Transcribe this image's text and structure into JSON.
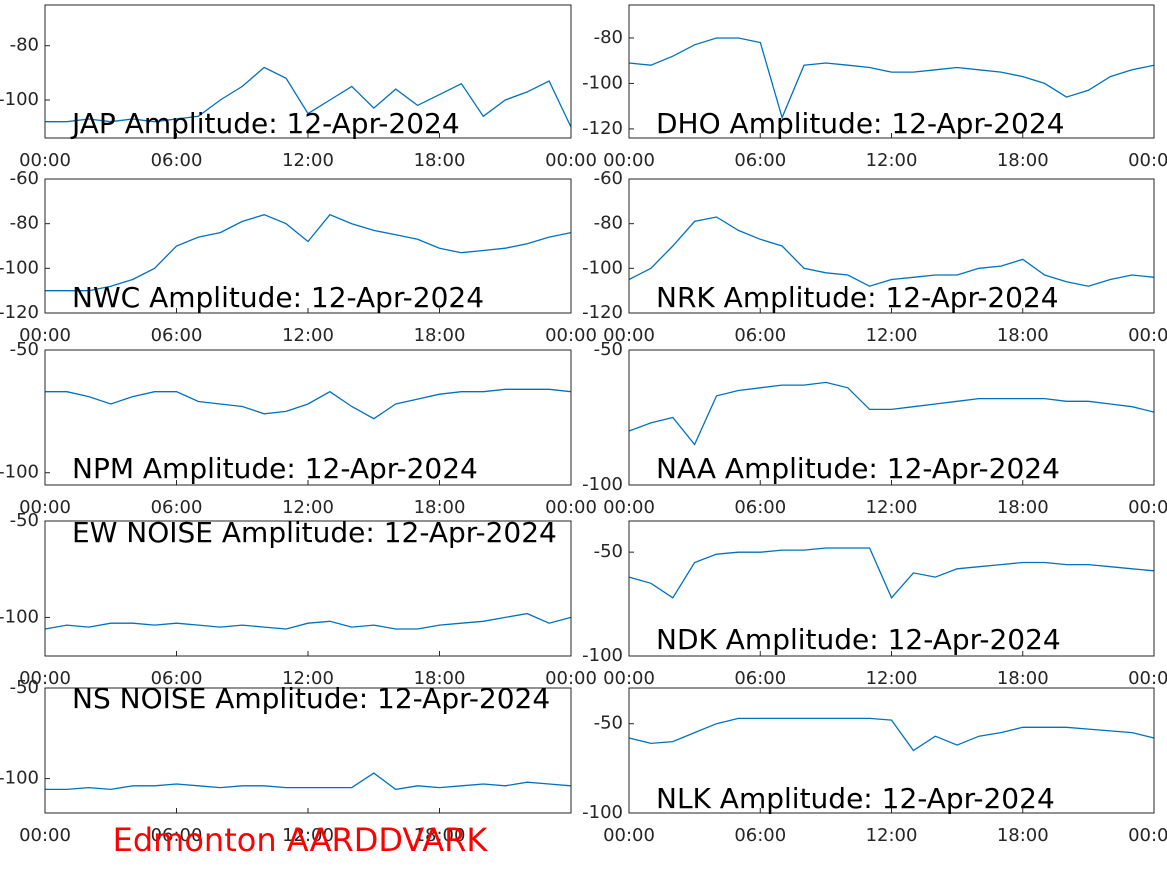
{
  "chart_data": [
    {
      "type": "line",
      "title": "JAP Amplitude: 12-Apr-2024",
      "color": "#0072bd",
      "xlim": [
        0,
        24
      ],
      "ylim": [
        -114,
        -65
      ],
      "xticks": [
        {
          "value": 0,
          "label": "00:00"
        },
        {
          "value": 6,
          "label": "06:00"
        },
        {
          "value": 12,
          "label": "12:00"
        },
        {
          "value": 18,
          "label": "18:00"
        },
        {
          "value": 24,
          "label": "00:00"
        }
      ],
      "yticks": [
        -80,
        -100
      ],
      "x": [
        0,
        1,
        2,
        3,
        4,
        5,
        6,
        7,
        8,
        9,
        10,
        11,
        12,
        13,
        14,
        15,
        16,
        17,
        18,
        19,
        20,
        21,
        22,
        23,
        24
      ],
      "values": [
        -108,
        -108,
        -107,
        -108,
        -107,
        -108,
        -107,
        -106,
        -100,
        -95,
        -88,
        -92,
        -105,
        -100,
        -95,
        -103,
        -96,
        -102,
        -98,
        -94,
        -106,
        -100,
        -97,
        -93,
        -110
      ]
    },
    {
      "type": "line",
      "title": "DHO Amplitude: 12-Apr-2024",
      "color": "#0072bd",
      "xlim": [
        0,
        24
      ],
      "ylim": [
        -124,
        -65.5
      ],
      "xticks": [
        {
          "value": 0,
          "label": "00:00"
        },
        {
          "value": 6,
          "label": "06:00"
        },
        {
          "value": 12,
          "label": "12:00"
        },
        {
          "value": 18,
          "label": "18:00"
        },
        {
          "value": 24,
          "label": "00:00"
        }
      ],
      "yticks": [
        -80,
        -100,
        -120
      ],
      "x": [
        0,
        1,
        2,
        3,
        4,
        5,
        6,
        7,
        8,
        9,
        10,
        11,
        12,
        13,
        14,
        15,
        16,
        17,
        18,
        19,
        20,
        21,
        22,
        23,
        24
      ],
      "values": [
        -91,
        -92,
        -88,
        -83,
        -80,
        -80,
        -82,
        -115,
        -92,
        -91,
        -92,
        -93,
        -95,
        -95,
        -94,
        -93,
        -94,
        -95,
        -97,
        -100,
        -106,
        -103,
        -97,
        -94,
        -92
      ]
    },
    {
      "type": "line",
      "title": "NWC Amplitude: 12-Apr-2024",
      "color": "#0072bd",
      "xlim": [
        0,
        24
      ],
      "ylim": [
        -120,
        -60
      ],
      "xticks": [
        {
          "value": 0,
          "label": "00:00"
        },
        {
          "value": 6,
          "label": "06:00"
        },
        {
          "value": 12,
          "label": "12:00"
        },
        {
          "value": 18,
          "label": "18:00"
        },
        {
          "value": 24,
          "label": "00:00"
        }
      ],
      "yticks": [
        -60,
        -80,
        -100,
        -120
      ],
      "x": [
        0,
        1,
        2,
        3,
        4,
        5,
        6,
        7,
        8,
        9,
        10,
        11,
        12,
        13,
        14,
        15,
        16,
        17,
        18,
        19,
        20,
        21,
        22,
        23,
        24
      ],
      "values": [
        -110,
        -110,
        -110,
        -108,
        -105,
        -100,
        -90,
        -86,
        -84,
        -79,
        -76,
        -80,
        -88,
        -76,
        -80,
        -83,
        -85,
        -87,
        -91,
        -93,
        -92,
        -91,
        -89,
        -86,
        -84
      ]
    },
    {
      "type": "line",
      "title": "NRK Amplitude: 12-Apr-2024",
      "color": "#0072bd",
      "xlim": [
        0,
        24
      ],
      "ylim": [
        -120,
        -60
      ],
      "xticks": [
        {
          "value": 0,
          "label": "00:00"
        },
        {
          "value": 6,
          "label": "06:00"
        },
        {
          "value": 12,
          "label": "12:00"
        },
        {
          "value": 18,
          "label": "18:00"
        },
        {
          "value": 24,
          "label": "00:00"
        }
      ],
      "yticks": [
        -60,
        -80,
        -100,
        -120
      ],
      "x": [
        0,
        1,
        2,
        3,
        4,
        5,
        6,
        7,
        8,
        9,
        10,
        11,
        12,
        13,
        14,
        15,
        16,
        17,
        18,
        19,
        20,
        21,
        22,
        23,
        24
      ],
      "values": [
        -105,
        -100,
        -90,
        -79,
        -77,
        -83,
        -87,
        -90,
        -100,
        -102,
        -103,
        -108,
        -105,
        -104,
        -103,
        -103,
        -100,
        -99,
        -96,
        -103,
        -106,
        -108,
        -105,
        -103,
        -104
      ]
    },
    {
      "type": "line",
      "title": "NPM Amplitude: 12-Apr-2024",
      "color": "#0072bd",
      "xlim": [
        0,
        24
      ],
      "ylim": [
        -105,
        -50
      ],
      "xticks": [
        {
          "value": 0,
          "label": "00:00"
        },
        {
          "value": 6,
          "label": "06:00"
        },
        {
          "value": 12,
          "label": "12:00"
        },
        {
          "value": 18,
          "label": "18:00"
        },
        {
          "value": 24,
          "label": "00:00"
        }
      ],
      "yticks": [
        -50,
        -100
      ],
      "x": [
        0,
        1,
        2,
        3,
        4,
        5,
        6,
        7,
        8,
        9,
        10,
        11,
        12,
        13,
        14,
        15,
        16,
        17,
        18,
        19,
        20,
        21,
        22,
        23,
        24
      ],
      "values": [
        -67,
        -67,
        -69,
        -72,
        -69,
        -67,
        -67,
        -71,
        -72,
        -73,
        -76,
        -75,
        -72,
        -67,
        -73,
        -78,
        -72,
        -70,
        -68,
        -67,
        -67,
        -66,
        -66,
        -66,
        -67
      ]
    },
    {
      "type": "line",
      "title": "NAA Amplitude: 12-Apr-2024",
      "color": "#0072bd",
      "xlim": [
        0,
        24
      ],
      "ylim": [
        -100,
        -50
      ],
      "xticks": [
        {
          "value": 0,
          "label": "00:00"
        },
        {
          "value": 6,
          "label": "06:00"
        },
        {
          "value": 12,
          "label": "12:00"
        },
        {
          "value": 18,
          "label": "18:00"
        },
        {
          "value": 24,
          "label": "00:00"
        }
      ],
      "yticks": [
        -50,
        -100
      ],
      "x": [
        0,
        1,
        2,
        3,
        4,
        5,
        6,
        7,
        8,
        9,
        10,
        11,
        12,
        13,
        14,
        15,
        16,
        17,
        18,
        19,
        20,
        21,
        22,
        23,
        24
      ],
      "values": [
        -80,
        -77,
        -75,
        -85,
        -67,
        -65,
        -64,
        -63,
        -63,
        -62,
        -64,
        -72,
        -72,
        -71,
        -70,
        -69,
        -68,
        -68,
        -68,
        -68,
        -69,
        -69,
        -70,
        -71,
        -73
      ]
    },
    {
      "type": "line",
      "title": "EW NOISE Amplitude: 12-Apr-2024",
      "color": "#0072bd",
      "xlim": [
        0,
        24
      ],
      "ylim": [
        -120,
        -50
      ],
      "xticks": [
        {
          "value": 0,
          "label": "00:00"
        },
        {
          "value": 6,
          "label": "06:00"
        },
        {
          "value": 12,
          "label": "12:00"
        },
        {
          "value": 18,
          "label": "18:00"
        },
        {
          "value": 24,
          "label": "00:00"
        }
      ],
      "yticks": [
        -50,
        -100
      ],
      "x": [
        0,
        1,
        2,
        3,
        4,
        5,
        6,
        7,
        8,
        9,
        10,
        11,
        12,
        13,
        14,
        15,
        16,
        17,
        18,
        19,
        20,
        21,
        22,
        23,
        24
      ],
      "values": [
        -106,
        -104,
        -105,
        -103,
        -103,
        -104,
        -103,
        -104,
        -105,
        -104,
        -105,
        -106,
        -103,
        -102,
        -105,
        -104,
        -106,
        -106,
        -104,
        -103,
        -102,
        -100,
        -98,
        -103,
        -100
      ]
    },
    {
      "type": "line",
      "title": "NDK Amplitude: 12-Apr-2024",
      "color": "#0072bd",
      "xlim": [
        0,
        24
      ],
      "ylim": [
        -100,
        -35
      ],
      "xticks": [
        {
          "value": 0,
          "label": "00:00"
        },
        {
          "value": 6,
          "label": "06:00"
        },
        {
          "value": 12,
          "label": "12:00"
        },
        {
          "value": 18,
          "label": "18:00"
        },
        {
          "value": 24,
          "label": "00:00"
        }
      ],
      "yticks": [
        -50,
        -100
      ],
      "x": [
        0,
        1,
        2,
        3,
        4,
        5,
        6,
        7,
        8,
        9,
        10,
        11,
        12,
        13,
        14,
        15,
        16,
        17,
        18,
        19,
        20,
        21,
        22,
        23,
        24
      ],
      "values": [
        -62,
        -65,
        -72,
        -55,
        -51,
        -50,
        -50,
        -49,
        -49,
        -48,
        -48,
        -48,
        -72,
        -60,
        -62,
        -58,
        -57,
        -56,
        -55,
        -55,
        -56,
        -56,
        -57,
        -58,
        -59
      ]
    },
    {
      "type": "line",
      "title": "NS NOISE Amplitude: 12-Apr-2024",
      "color": "#0072bd",
      "xlim": [
        0,
        24
      ],
      "ylim": [
        -119,
        -50
      ],
      "xticks": [
        {
          "value": 0,
          "label": "00:00"
        },
        {
          "value": 6,
          "label": "06:00"
        },
        {
          "value": 12,
          "label": "12:00"
        },
        {
          "value": 18,
          "label": "18:00"
        }
      ],
      "yticks": [
        -50,
        -100
      ],
      "x": [
        0,
        1,
        2,
        3,
        4,
        5,
        6,
        7,
        8,
        9,
        10,
        11,
        12,
        13,
        14,
        15,
        16,
        17,
        18,
        19,
        20,
        21,
        22,
        23,
        24
      ],
      "values": [
        -106,
        -106,
        -105,
        -106,
        -104,
        -104,
        -103,
        -104,
        -105,
        -104,
        -104,
        -105,
        -105,
        -105,
        -105,
        -97,
        -106,
        -104,
        -105,
        -104,
        -103,
        -104,
        -102,
        -103,
        -104
      ]
    },
    {
      "type": "line",
      "title": "NLK Amplitude: 12-Apr-2024",
      "color": "#0072bd",
      "xlim": [
        0,
        24
      ],
      "ylim": [
        -100,
        -30
      ],
      "xticks": [
        {
          "value": 0,
          "label": "00:00"
        },
        {
          "value": 6,
          "label": "06:00"
        },
        {
          "value": 12,
          "label": "12:00"
        },
        {
          "value": 18,
          "label": "18:00"
        },
        {
          "value": 24,
          "label": "00:00"
        }
      ],
      "yticks": [
        -50,
        -100
      ],
      "x": [
        0,
        1,
        2,
        3,
        4,
        5,
        6,
        7,
        8,
        9,
        10,
        11,
        12,
        13,
        14,
        15,
        16,
        17,
        18,
        19,
        20,
        21,
        22,
        23,
        24
      ],
      "values": [
        -58,
        -61,
        -60,
        -55,
        -50,
        -47,
        -47,
        -47,
        -47,
        -47,
        -47,
        -47,
        -48,
        -65,
        -57,
        -62,
        -57,
        -55,
        -52,
        -52,
        -52,
        -53,
        -54,
        -55,
        -58
      ]
    }
  ],
  "footer": "Edmonton AARDDVARK"
}
